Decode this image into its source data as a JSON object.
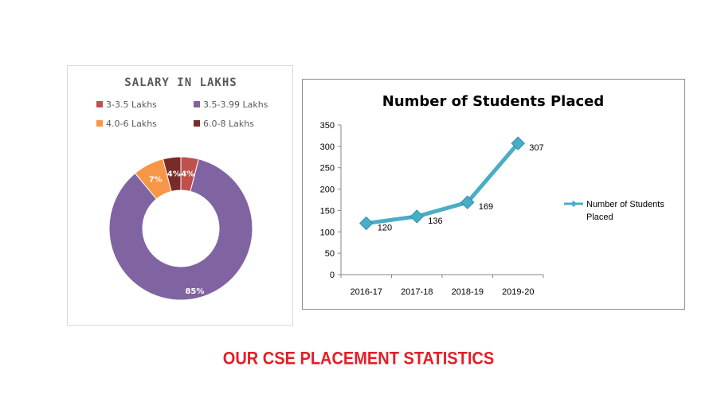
{
  "footer": {
    "caption": "OUR CSE PLACEMENT STATISTICS"
  },
  "chart_data": [
    {
      "type": "pie",
      "variant": "donut",
      "title": "SALARY IN LAKHS",
      "categories": [
        "3-3.5 Lakhs",
        "3.5-3.99 Lakhs",
        "4.0-6 Lakhs",
        "6.0-8 Lakhs"
      ],
      "values": [
        4,
        85,
        7,
        4
      ],
      "data_labels": [
        "4%",
        "85%",
        "7%",
        "4%"
      ],
      "colors": [
        "#c0504d",
        "#8064a2",
        "#f79646",
        "#772c2a"
      ],
      "legend": "top"
    },
    {
      "type": "line",
      "title": "Number of Students Placed",
      "categories": [
        "2016-17",
        "2017-18",
        "2018-19",
        "2019-20"
      ],
      "series": [
        {
          "name": "Number of Students Placed",
          "values": [
            120,
            136,
            169,
            307
          ],
          "color": "#4bacc6"
        }
      ],
      "ylim": [
        0,
        350
      ],
      "yticks": [
        0,
        50,
        100,
        150,
        200,
        250,
        300,
        350
      ],
      "grid": false,
      "legend": "right"
    }
  ]
}
